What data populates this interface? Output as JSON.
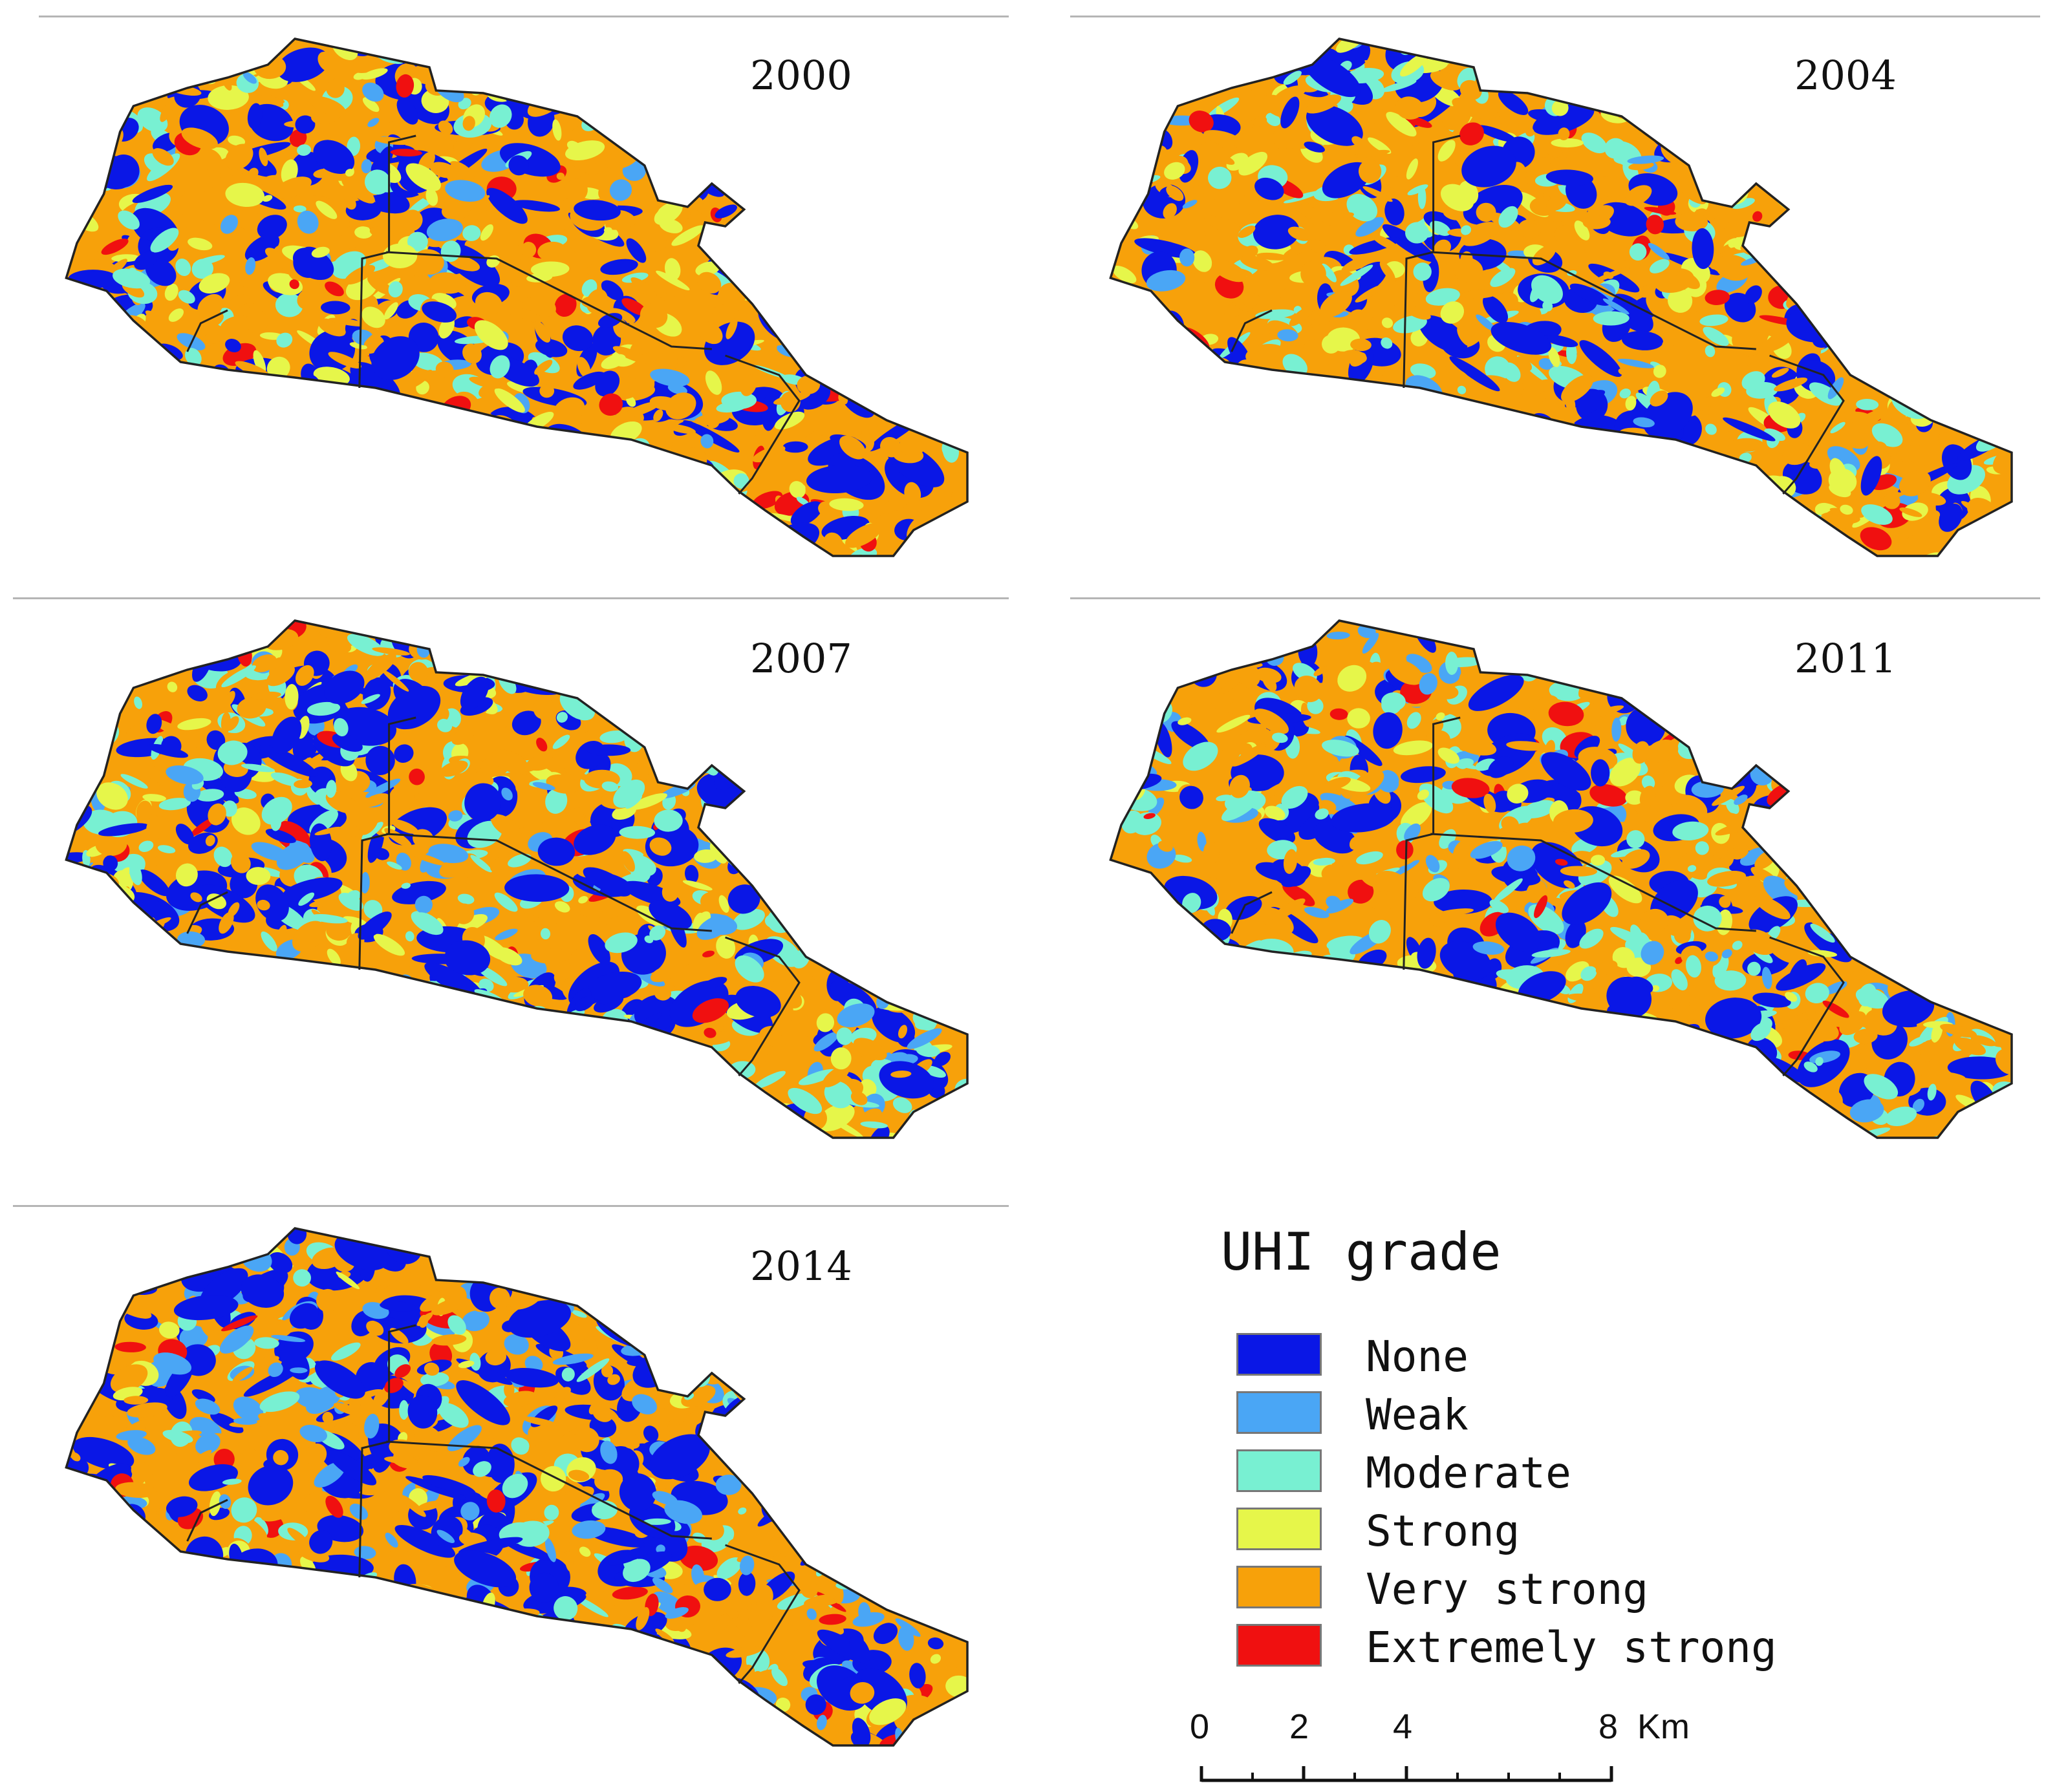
{
  "panels": [
    {
      "year": "2000",
      "mix": {
        "none": 0.18,
        "weak": 0.04,
        "moderate": 0.12,
        "strong": 0.17,
        "very_strong": 0.46,
        "extremely_strong": 0.03
      }
    },
    {
      "year": "2004",
      "mix": {
        "none": 0.16,
        "weak": 0.05,
        "moderate": 0.18,
        "strong": 0.13,
        "very_strong": 0.45,
        "extremely_strong": 0.03
      }
    },
    {
      "year": "2007",
      "mix": {
        "none": 0.2,
        "weak": 0.1,
        "moderate": 0.24,
        "strong": 0.1,
        "very_strong": 0.33,
        "extremely_strong": 0.03
      }
    },
    {
      "year": "2011",
      "mix": {
        "none": 0.16,
        "weak": 0.1,
        "moderate": 0.26,
        "strong": 0.08,
        "very_strong": 0.37,
        "extremely_strong": 0.03
      }
    },
    {
      "year": "2014",
      "mix": {
        "none": 0.22,
        "weak": 0.16,
        "moderate": 0.12,
        "strong": 0.05,
        "very_strong": 0.4,
        "extremely_strong": 0.05
      }
    }
  ],
  "legend": {
    "title": "UHI grade",
    "items": [
      {
        "key": "none",
        "label": "None",
        "color": "#0a17e6"
      },
      {
        "key": "weak",
        "label": "Weak",
        "color": "#4aa6f5"
      },
      {
        "key": "moderate",
        "label": "Moderate",
        "color": "#78f0d2"
      },
      {
        "key": "strong",
        "label": "Strong",
        "color": "#e6f64a"
      },
      {
        "key": "very_strong",
        "label": "Very strong",
        "color": "#f7a10a"
      },
      {
        "key": "extremely_strong",
        "label": "Extremely strong",
        "color": "#f01010"
      }
    ]
  },
  "scale": {
    "labels": [
      "0",
      "2",
      "4",
      "8"
    ],
    "unit": "Km"
  }
}
